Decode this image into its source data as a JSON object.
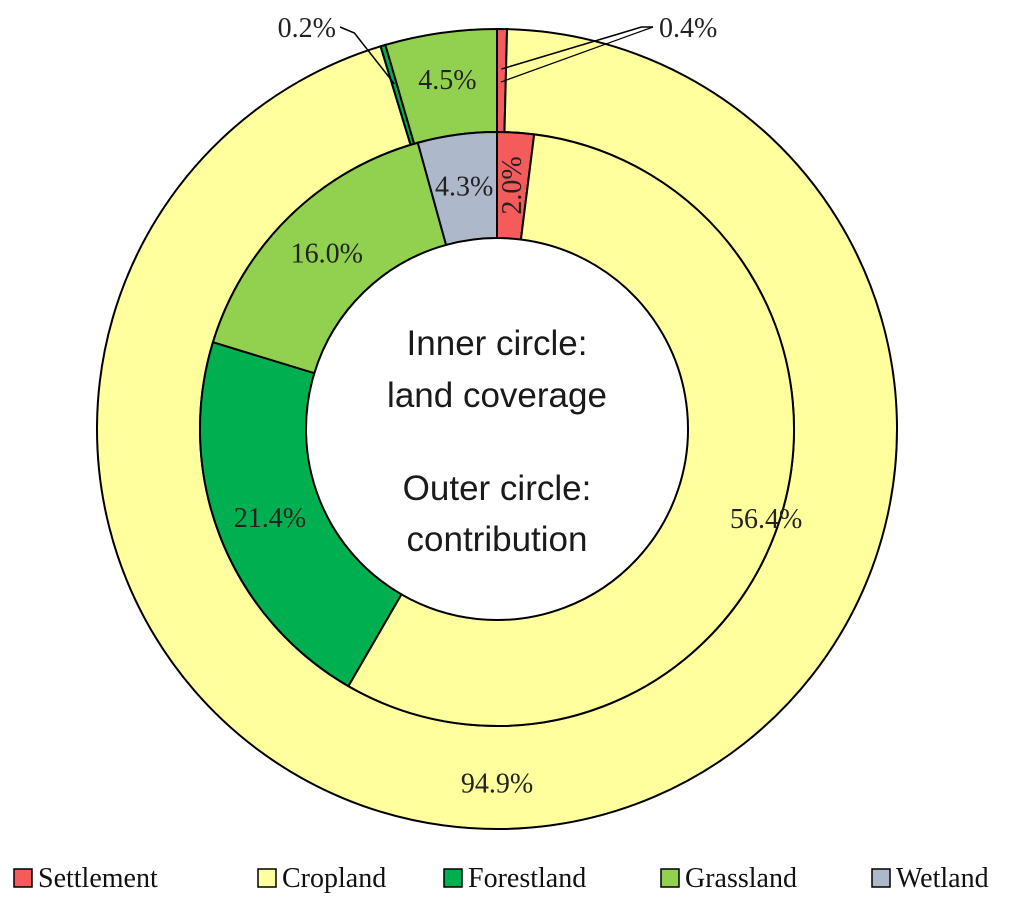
{
  "chart_data": {
    "type": "pie",
    "variant": "nested-donut",
    "categories": [
      "Settlement",
      "Cropland",
      "Forestland",
      "Grassland",
      "Wetland"
    ],
    "colors": {
      "Settlement": "#f45b5b",
      "Cropland": "#ffff9e",
      "Forestland": "#00b050",
      "Grassland": "#92d050",
      "Wetland": "#adb9ca"
    },
    "series": [
      {
        "ring": "inner",
        "slices": [
          {
            "category": "Settlement",
            "value": 2.0,
            "label": "2.0%"
          },
          {
            "category": "Cropland",
            "value": 56.4,
            "label": "56.4%"
          },
          {
            "category": "Forestland",
            "value": 21.4,
            "label": "21.4%"
          },
          {
            "category": "Grassland",
            "value": 16.0,
            "label": "16.0%"
          },
          {
            "category": "Wetland",
            "value": 4.3,
            "label": "4.3%"
          }
        ]
      },
      {
        "ring": "outer",
        "slices": [
          {
            "category": "Settlement",
            "value": 0.4,
            "label": "0.4%"
          },
          {
            "category": "Cropland",
            "value": 94.9,
            "label": "94.9%"
          },
          {
            "category": "Forestland",
            "value": 0.2,
            "label": "0.2%"
          },
          {
            "category": "Grassland",
            "value": 4.5,
            "label": "4.5%"
          },
          {
            "category": "Wetland",
            "value": 0.0,
            "label": ""
          }
        ]
      }
    ],
    "center_text": [
      "Inner circle:",
      "land coverage",
      "Outer circle:",
      "contribution"
    ],
    "legend": [
      "Settlement",
      "Cropland",
      "Forestland",
      "Grassland",
      "Wetland"
    ],
    "legend_position": "bottom"
  }
}
